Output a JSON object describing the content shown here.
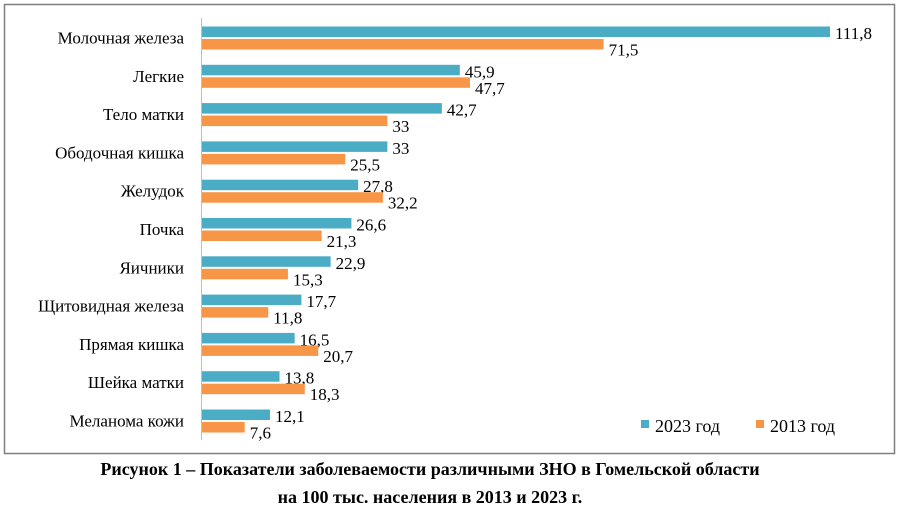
{
  "chart_data": {
    "type": "bar",
    "orientation": "horizontal",
    "categories": [
      "Молочная железа",
      "Легкие",
      "Тело матки",
      "Ободочная кишка",
      "Желудок",
      "Почка",
      "Яичники",
      "Щитовидная железа",
      "Прямая кишка",
      "Шейка матки",
      "Меланома кожи"
    ],
    "series": [
      {
        "name": "2023 год",
        "color": "#4BACC6",
        "values": [
          111.8,
          45.9,
          42.7,
          33,
          27.8,
          26.6,
          22.9,
          17.7,
          16.5,
          13.8,
          12.1
        ],
        "labels": [
          "111,8",
          "45,9",
          "42,7",
          "33",
          "27,8",
          "26,6",
          "22,9",
          "17,7",
          "16,5",
          "13,8",
          "12,1"
        ]
      },
      {
        "name": "2013 год",
        "color": "#F79646",
        "values": [
          71.5,
          47.7,
          33,
          25.5,
          32.2,
          21.3,
          15.3,
          11.8,
          20.7,
          18.3,
          7.6
        ],
        "labels": [
          "71,5",
          "47,7",
          "33",
          "25,5",
          "32,2",
          "21,3",
          "15,3",
          "11,8",
          "20,7",
          "18,3",
          "7,6"
        ]
      }
    ],
    "xlim": [
      0,
      112
    ],
    "grid": false,
    "legend": "bottom-right",
    "title": ""
  },
  "caption": {
    "line1": "Рисунок 1 – Показатели заболеваемости различными ЗНО в Гомельской области",
    "line2": "на 100 тыс. населения в 2013 и 2023 г."
  }
}
